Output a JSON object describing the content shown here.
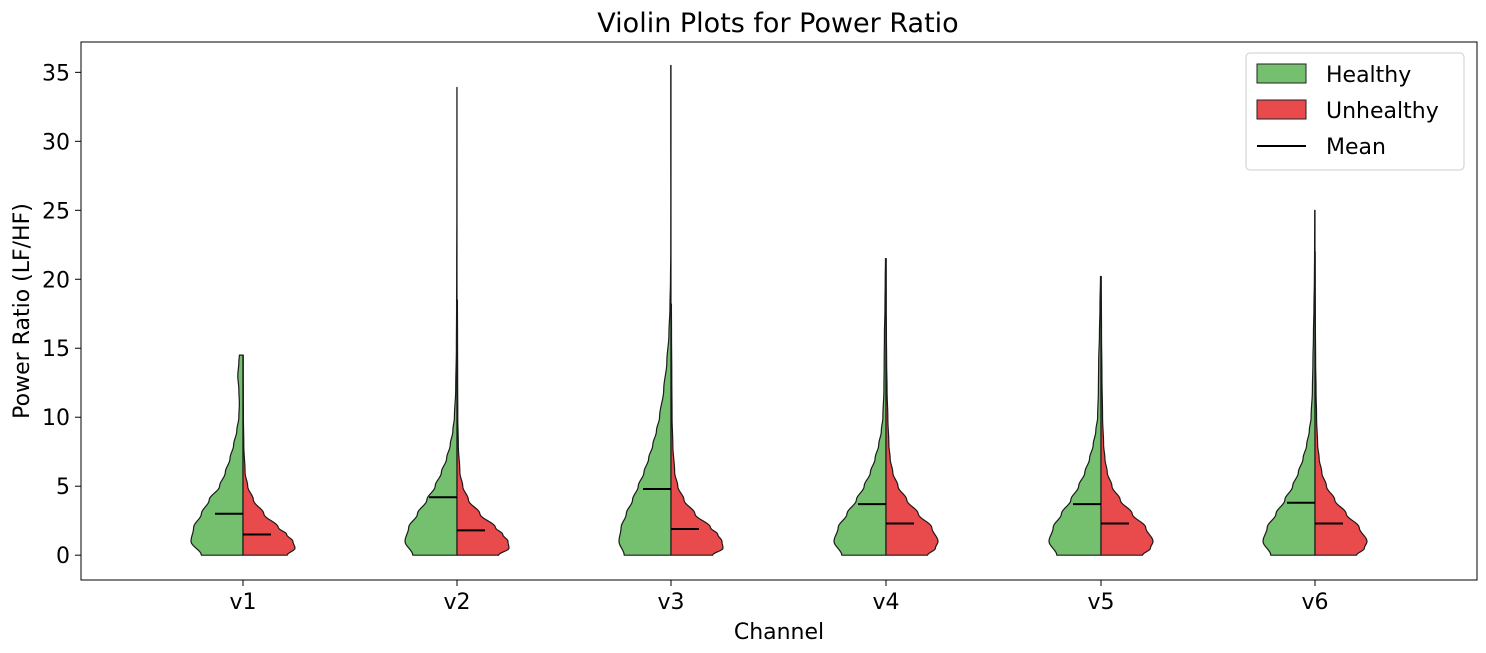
{
  "chart_data": {
    "type": "violin",
    "title": "Violin Plots for Power Ratio",
    "xlabel": "Channel",
    "ylabel": "Power Ratio (LF/HF)",
    "categories": [
      "v1",
      "v2",
      "v3",
      "v4",
      "v5",
      "v6"
    ],
    "ylim": [
      -1.8,
      37.2
    ],
    "yticks": [
      0,
      5,
      10,
      15,
      20,
      25,
      30,
      35
    ],
    "grid": false,
    "legend_position": "top-right",
    "legend": [
      "Healthy",
      "Unhealthy",
      "Mean"
    ],
    "colors": {
      "Healthy": "#4daf4a",
      "Unhealthy": "#e41a1c",
      "Mean": "#000000"
    },
    "series": [
      {
        "name": "Healthy",
        "means": [
          3.0,
          4.2,
          4.8,
          3.7,
          3.7,
          3.8
        ],
        "max": [
          14.5,
          33.9,
          35.5,
          21.5,
          20.2,
          25.0
        ],
        "profiles": [
          [
            [
              0,
              0.8
            ],
            [
              1,
              1.0
            ],
            [
              2,
              0.95
            ],
            [
              3,
              0.8
            ],
            [
              4,
              0.65
            ],
            [
              5,
              0.45
            ],
            [
              6,
              0.34
            ],
            [
              7,
              0.25
            ],
            [
              8,
              0.18
            ],
            [
              9,
              0.12
            ],
            [
              10,
              0.08
            ],
            [
              11,
              0.07
            ],
            [
              12,
              0.08
            ],
            [
              13,
              0.1
            ],
            [
              14,
              0.08
            ],
            [
              14.5,
              0.07
            ]
          ],
          [
            [
              0,
              0.85
            ],
            [
              1,
              1.0
            ],
            [
              2,
              0.93
            ],
            [
              3,
              0.76
            ],
            [
              4,
              0.58
            ],
            [
              5,
              0.42
            ],
            [
              6,
              0.3
            ],
            [
              7,
              0.2
            ],
            [
              8,
              0.13
            ],
            [
              9,
              0.08
            ],
            [
              10,
              0.05
            ],
            [
              12,
              0.025
            ],
            [
              15,
              0.012
            ],
            [
              18,
              0.008
            ],
            [
              21,
              0.006
            ],
            [
              25,
              0.003
            ],
            [
              30,
              0.002
            ],
            [
              33.9,
              0.002
            ]
          ],
          [
            [
              0,
              0.9
            ],
            [
              1,
              1.0
            ],
            [
              2,
              0.96
            ],
            [
              3,
              0.86
            ],
            [
              4,
              0.74
            ],
            [
              5,
              0.63
            ],
            [
              6,
              0.52
            ],
            [
              7,
              0.43
            ],
            [
              8,
              0.35
            ],
            [
              9,
              0.28
            ],
            [
              10,
              0.22
            ],
            [
              12,
              0.14
            ],
            [
              14,
              0.08
            ],
            [
              16,
              0.04
            ],
            [
              18,
              0.02
            ],
            [
              20,
              0.01
            ],
            [
              22,
              0.005
            ],
            [
              26,
              0.004
            ],
            [
              30,
              0.005
            ],
            [
              33,
              0.005
            ],
            [
              35.5,
              0.005
            ]
          ],
          [
            [
              0,
              0.85
            ],
            [
              1,
              1.0
            ],
            [
              2,
              0.92
            ],
            [
              3,
              0.75
            ],
            [
              4,
              0.57
            ],
            [
              5,
              0.42
            ],
            [
              6,
              0.3
            ],
            [
              7,
              0.21
            ],
            [
              8,
              0.14
            ],
            [
              9,
              0.09
            ],
            [
              10,
              0.06
            ],
            [
              12,
              0.04
            ],
            [
              14,
              0.035
            ],
            [
              16,
              0.03
            ],
            [
              18,
              0.02
            ],
            [
              20,
              0.015
            ],
            [
              21.5,
              0.01
            ]
          ],
          [
            [
              0,
              0.85
            ],
            [
              1,
              1.0
            ],
            [
              2,
              0.92
            ],
            [
              3,
              0.76
            ],
            [
              4,
              0.58
            ],
            [
              5,
              0.43
            ],
            [
              6,
              0.31
            ],
            [
              7,
              0.22
            ],
            [
              8,
              0.15
            ],
            [
              9,
              0.1
            ],
            [
              10,
              0.065
            ],
            [
              12,
              0.05
            ],
            [
              14,
              0.045
            ],
            [
              16,
              0.03
            ],
            [
              18,
              0.02
            ],
            [
              20.2,
              0.01
            ]
          ],
          [
            [
              0,
              0.85
            ],
            [
              1,
              1.0
            ],
            [
              2,
              0.92
            ],
            [
              3,
              0.75
            ],
            [
              4,
              0.58
            ],
            [
              5,
              0.43
            ],
            [
              6,
              0.32
            ],
            [
              7,
              0.23
            ],
            [
              8,
              0.16
            ],
            [
              9,
              0.11
            ],
            [
              10,
              0.075
            ],
            [
              12,
              0.05
            ],
            [
              14,
              0.04
            ],
            [
              16,
              0.03
            ],
            [
              18,
              0.02
            ],
            [
              20,
              0.012
            ],
            [
              22,
              0.008
            ],
            [
              25,
              0.006
            ]
          ]
        ]
      },
      {
        "name": "Unhealthy",
        "means": [
          1.5,
          1.8,
          1.9,
          2.3,
          2.3,
          2.3
        ],
        "max": [
          14.5,
          18.5,
          18.2,
          21.5,
          20.2,
          22.0
        ],
        "profiles": [
          [
            [
              0,
              0.85
            ],
            [
              0.5,
              1.0
            ],
            [
              1,
              0.96
            ],
            [
              1.5,
              0.84
            ],
            [
              2,
              0.68
            ],
            [
              3,
              0.4
            ],
            [
              4,
              0.2
            ],
            [
              5,
              0.09
            ],
            [
              6,
              0.04
            ],
            [
              8,
              0.015
            ],
            [
              10,
              0.008
            ],
            [
              12,
              0.006
            ],
            [
              14.5,
              0.005
            ]
          ],
          [
            [
              0,
              0.8
            ],
            [
              0.5,
              1.0
            ],
            [
              1,
              0.98
            ],
            [
              1.5,
              0.88
            ],
            [
              2,
              0.74
            ],
            [
              3,
              0.44
            ],
            [
              4,
              0.22
            ],
            [
              5,
              0.11
            ],
            [
              6,
              0.055
            ],
            [
              8,
              0.025
            ],
            [
              10,
              0.015
            ],
            [
              13,
              0.012
            ],
            [
              16,
              0.01
            ],
            [
              18.5,
              0.008
            ]
          ],
          [
            [
              0,
              0.8
            ],
            [
              0.5,
              1.0
            ],
            [
              1,
              0.98
            ],
            [
              1.5,
              0.9
            ],
            [
              2,
              0.76
            ],
            [
              3,
              0.46
            ],
            [
              4,
              0.25
            ],
            [
              5,
              0.13
            ],
            [
              6,
              0.07
            ],
            [
              8,
              0.035
            ],
            [
              10,
              0.02
            ],
            [
              13,
              0.015
            ],
            [
              16,
              0.01
            ],
            [
              18.2,
              0.008
            ]
          ],
          [
            [
              0,
              0.8
            ],
            [
              0.5,
              0.95
            ],
            [
              1,
              1.0
            ],
            [
              2,
              0.88
            ],
            [
              3,
              0.62
            ],
            [
              4,
              0.4
            ],
            [
              5,
              0.23
            ],
            [
              6,
              0.13
            ],
            [
              7,
              0.08
            ],
            [
              8,
              0.055
            ],
            [
              10,
              0.035
            ],
            [
              12,
              0.02
            ],
            [
              14,
              0.012
            ],
            [
              16,
              0.008
            ],
            [
              18,
              0.005
            ],
            [
              21.5,
              0.004
            ]
          ],
          [
            [
              0,
              0.8
            ],
            [
              0.5,
              0.95
            ],
            [
              1,
              1.0
            ],
            [
              2,
              0.86
            ],
            [
              3,
              0.6
            ],
            [
              4,
              0.37
            ],
            [
              5,
              0.21
            ],
            [
              6,
              0.12
            ],
            [
              7,
              0.075
            ],
            [
              8,
              0.05
            ],
            [
              10,
              0.03
            ],
            [
              13,
              0.018
            ],
            [
              16,
              0.01
            ],
            [
              20.2,
              0.005
            ]
          ],
          [
            [
              0,
              0.8
            ],
            [
              0.5,
              0.95
            ],
            [
              1,
              1.0
            ],
            [
              2,
              0.85
            ],
            [
              3,
              0.6
            ],
            [
              4,
              0.38
            ],
            [
              5,
              0.22
            ],
            [
              6,
              0.13
            ],
            [
              7,
              0.08
            ],
            [
              8,
              0.05
            ],
            [
              10,
              0.03
            ],
            [
              12,
              0.02
            ],
            [
              14,
              0.012
            ],
            [
              17,
              0.007
            ],
            [
              20,
              0.005
            ],
            [
              22,
              0.004
            ]
          ]
        ]
      }
    ]
  }
}
